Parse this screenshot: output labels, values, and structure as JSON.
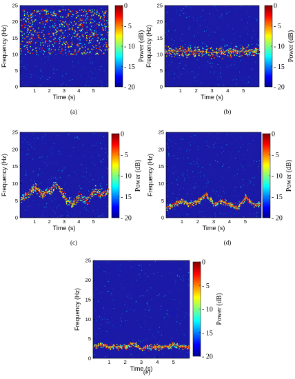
{
  "figure": {
    "colormap": [
      "#00008f",
      "#0000ff",
      "#0080ff",
      "#00ffff",
      "#80ff80",
      "#ffff00",
      "#ff8000",
      "#ff0000",
      "#800000"
    ],
    "background_color": "#1a1aa6"
  },
  "chart_data": [
    {
      "type": "heatmap",
      "panel_label": "(a)",
      "xlabel": "Time (s)",
      "ylabel": "Frequency (Hz)",
      "colorbar_label": "Power (dB)",
      "xticks": [
        1,
        2,
        3,
        4,
        5
      ],
      "yticks": [
        0,
        5,
        10,
        15,
        20,
        25
      ],
      "xlim": [
        0,
        6
      ],
      "ylim": [
        0,
        25
      ],
      "colorbar_ticks": [
        "0",
        "- 5",
        "- 10",
        "- 15",
        "- 20"
      ],
      "colorbar_range_db": [
        -20,
        0
      ],
      "ridge": {
        "pattern": "broadband",
        "band_hz": [
          10,
          24
        ],
        "spread_hz": 7
      }
    },
    {
      "type": "heatmap",
      "panel_label": "(b)",
      "xlabel": "Time (s)",
      "ylabel": "Frequency (Hz)",
      "colorbar_label": "Power (dB)",
      "xticks": [
        1,
        2,
        3,
        4,
        5
      ],
      "yticks": [
        0,
        5,
        10,
        15,
        20,
        25
      ],
      "xlim": [
        0,
        6
      ],
      "ylim": [
        0,
        25
      ],
      "colorbar_ticks": [
        "0",
        "- 5",
        "- 10",
        "- 15",
        "- 20"
      ],
      "colorbar_range_db": [
        -20,
        0
      ],
      "ridge": {
        "pattern": "band",
        "times_s": [
          0,
          1,
          2,
          3,
          4,
          5,
          6
        ],
        "center_hz": [
          11,
          11,
          11,
          10.5,
          11,
          11,
          11
        ],
        "spread_hz": 2
      }
    },
    {
      "type": "heatmap",
      "panel_label": "(c)",
      "xlabel": "Time (s)",
      "ylabel": "Frequency (Hz)",
      "colorbar_label": "Power (dB)",
      "xticks": [
        1,
        2,
        3,
        4,
        5
      ],
      "yticks": [
        0,
        5,
        10,
        15,
        20,
        25
      ],
      "xlim": [
        0,
        6
      ],
      "ylim": [
        0,
        25
      ],
      "colorbar_ticks": [
        "0",
        "- 5",
        "- 10",
        "- 15",
        "- 20"
      ],
      "colorbar_range_db": [
        -20,
        0
      ],
      "ridge": {
        "pattern": "curve",
        "times_s": [
          0,
          0.5,
          1,
          1.5,
          2,
          2.5,
          3,
          3.5,
          4,
          4.5,
          5,
          5.5,
          6
        ],
        "center_hz": [
          5,
          7,
          9,
          7,
          8,
          10,
          6,
          4,
          6,
          5,
          8,
          7,
          8
        ],
        "spread_hz": 1.5
      }
    },
    {
      "type": "heatmap",
      "panel_label": "(d)",
      "xlabel": "Time (s)",
      "ylabel": "Frequency (Hz)",
      "colorbar_label": "Power (dB)",
      "xticks": [
        1,
        2,
        3,
        4,
        5
      ],
      "yticks": [
        0,
        5,
        10,
        15,
        20,
        25
      ],
      "xlim": [
        0,
        6
      ],
      "ylim": [
        0,
        25
      ],
      "colorbar_ticks": [
        "0",
        "- 5",
        "- 10",
        "- 15",
        "- 20"
      ],
      "colorbar_range_db": [
        -20,
        0
      ],
      "ridge": {
        "pattern": "curve",
        "times_s": [
          0,
          0.5,
          1,
          1.5,
          2,
          2.5,
          3,
          3.5,
          4,
          4.5,
          5,
          5.5,
          6
        ],
        "center_hz": [
          3,
          4,
          5,
          4,
          5,
          7,
          4,
          5,
          4,
          3,
          6,
          4,
          4
        ],
        "spread_hz": 1
      }
    },
    {
      "type": "heatmap",
      "panel_label": "(e)",
      "xlabel": "Time (s)",
      "ylabel": "Frequency (Hz)",
      "colorbar_label": "Power (dB)",
      "xticks": [
        1,
        2,
        3,
        4,
        5
      ],
      "yticks": [
        0,
        5,
        10,
        15,
        20,
        25
      ],
      "xlim": [
        0,
        6
      ],
      "ylim": [
        0,
        25
      ],
      "colorbar_ticks": [
        "0",
        "- 5",
        "- 10",
        "- 15",
        "- 20"
      ],
      "colorbar_range_db": [
        -20,
        0
      ],
      "ridge": {
        "pattern": "curve",
        "times_s": [
          0,
          0.5,
          1,
          1.5,
          2,
          2.5,
          3,
          3.5,
          4,
          4.5,
          5,
          5.5,
          6
        ],
        "center_hz": [
          3,
          3.5,
          3,
          3,
          3,
          4,
          2.5,
          3,
          3,
          3,
          3.5,
          3,
          3
        ],
        "spread_hz": 0.8
      }
    }
  ]
}
